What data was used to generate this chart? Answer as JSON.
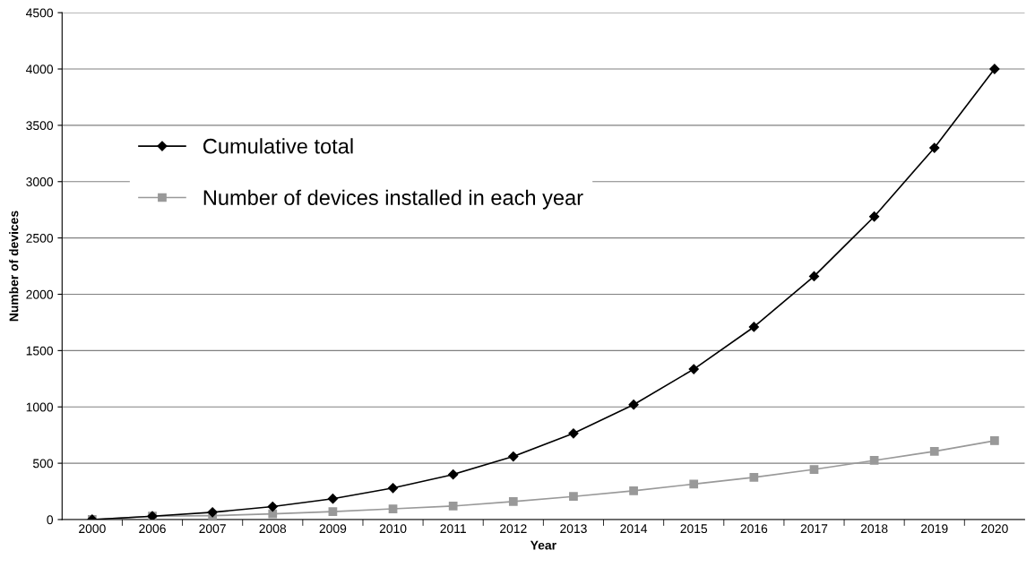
{
  "chart_data": {
    "type": "line",
    "xlabel": "Year",
    "ylabel": "Number of devices",
    "categories": [
      "2000",
      "2006",
      "2007",
      "2008",
      "2009",
      "2010",
      "2011",
      "2012",
      "2013",
      "2014",
      "2015",
      "2016",
      "2017",
      "2018",
      "2019",
      "2020"
    ],
    "series": [
      {
        "name": "Cumulative total",
        "color": "#000000",
        "marker": "diamond",
        "values": [
          0,
          30,
          65,
          115,
          185,
          280,
          400,
          560,
          765,
          1020,
          1335,
          1710,
          2160,
          2690,
          3300,
          4000
        ]
      },
      {
        "name": "Number of devices installed in each year",
        "color": "#999999",
        "marker": "square",
        "values": [
          0,
          30,
          35,
          50,
          70,
          95,
          120,
          160,
          205,
          255,
          315,
          375,
          445,
          525,
          605,
          700
        ]
      }
    ],
    "ylim": [
      0,
      4500
    ],
    "yticks": [
      0,
      500,
      1000,
      1500,
      2000,
      2500,
      3000,
      3500,
      4000,
      4500
    ],
    "grid": "y",
    "legend": "top left"
  }
}
